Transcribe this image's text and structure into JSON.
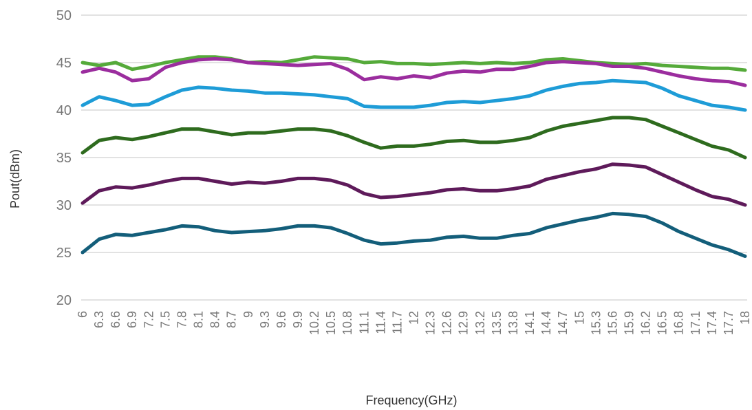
{
  "chart_data": {
    "type": "line",
    "title": "",
    "xlabel": "Frequency(GHz)",
    "ylabel": "Pout(dBm)",
    "ylim": [
      20,
      50
    ],
    "yticks": [
      "20",
      "25",
      "30",
      "35",
      "40",
      "45",
      "50"
    ],
    "xlim": [
      6,
      18
    ],
    "xtick_labels": [
      "6",
      "6.3",
      "6.6",
      "6.9",
      "7.2",
      "7.5",
      "7.8",
      "8.1",
      "8.4",
      "8.7",
      "9",
      "9.3",
      "9.6",
      "9.9",
      "10.2",
      "10.5",
      "10.8",
      "11.1",
      "11.4",
      "11.7",
      "12",
      "12.3",
      "12.6",
      "12.9",
      "13.2",
      "13.5",
      "13.8",
      "14.1",
      "14.4",
      "14.7",
      "15",
      "15.3",
      "15.6",
      "15.9",
      "16.2",
      "16.5",
      "16.8",
      "17.1",
      "17.4",
      "17.7",
      "18"
    ],
    "grid": true,
    "legend": "none",
    "series": [
      {
        "color": "#55aa3a",
        "points": [
          [
            6,
            45
          ],
          [
            6.3,
            44.7
          ],
          [
            6.6,
            45
          ],
          [
            6.9,
            44.3
          ],
          [
            7.2,
            44.6
          ],
          [
            7.5,
            45
          ],
          [
            7.8,
            45.3
          ],
          [
            8.1,
            45.6
          ],
          [
            8.4,
            45.6
          ],
          [
            8.7,
            45.4
          ],
          [
            9,
            45
          ],
          [
            9.3,
            45.1
          ],
          [
            9.6,
            45
          ],
          [
            9.9,
            45.3
          ],
          [
            10.2,
            45.6
          ],
          [
            10.5,
            45.5
          ],
          [
            10.8,
            45.4
          ],
          [
            11.1,
            45
          ],
          [
            11.4,
            45.1
          ],
          [
            11.7,
            44.9
          ],
          [
            12,
            44.9
          ],
          [
            12.3,
            44.8
          ],
          [
            12.6,
            44.9
          ],
          [
            12.9,
            45
          ],
          [
            13.2,
            44.9
          ],
          [
            13.5,
            45
          ],
          [
            13.8,
            44.9
          ],
          [
            14.1,
            45
          ],
          [
            14.4,
            45.3
          ],
          [
            14.7,
            45.4
          ],
          [
            15,
            45.2
          ],
          [
            15.3,
            45
          ],
          [
            15.6,
            44.9
          ],
          [
            15.9,
            44.8
          ],
          [
            16.2,
            44.9
          ],
          [
            16.5,
            44.7
          ],
          [
            16.8,
            44.6
          ],
          [
            17.1,
            44.5
          ],
          [
            17.4,
            44.4
          ],
          [
            17.7,
            44.4
          ],
          [
            18,
            44.2
          ]
        ]
      },
      {
        "color": "#9b2d9e",
        "points": [
          [
            6,
            44
          ],
          [
            6.3,
            44.4
          ],
          [
            6.6,
            44
          ],
          [
            6.9,
            43.1
          ],
          [
            7.2,
            43.3
          ],
          [
            7.5,
            44.5
          ],
          [
            7.8,
            45
          ],
          [
            8.1,
            45.3
          ],
          [
            8.4,
            45.4
          ],
          [
            8.7,
            45.3
          ],
          [
            9,
            45
          ],
          [
            9.3,
            44.9
          ],
          [
            9.6,
            44.8
          ],
          [
            9.9,
            44.7
          ],
          [
            10.2,
            44.8
          ],
          [
            10.5,
            44.9
          ],
          [
            10.8,
            44.3
          ],
          [
            11.1,
            43.2
          ],
          [
            11.4,
            43.5
          ],
          [
            11.7,
            43.3
          ],
          [
            12,
            43.6
          ],
          [
            12.3,
            43.4
          ],
          [
            12.6,
            43.9
          ],
          [
            12.9,
            44.1
          ],
          [
            13.2,
            44
          ],
          [
            13.5,
            44.3
          ],
          [
            13.8,
            44.3
          ],
          [
            14.1,
            44.6
          ],
          [
            14.4,
            45
          ],
          [
            14.7,
            45.1
          ],
          [
            15,
            45
          ],
          [
            15.3,
            44.9
          ],
          [
            15.6,
            44.6
          ],
          [
            15.9,
            44.6
          ],
          [
            16.2,
            44.4
          ],
          [
            16.5,
            44
          ],
          [
            16.8,
            43.6
          ],
          [
            17.1,
            43.3
          ],
          [
            17.4,
            43.1
          ],
          [
            17.7,
            43
          ],
          [
            18,
            42.6
          ]
        ]
      },
      {
        "color": "#1e9cd7",
        "points": [
          [
            6,
            40.5
          ],
          [
            6.3,
            41.4
          ],
          [
            6.6,
            41
          ],
          [
            6.9,
            40.5
          ],
          [
            7.2,
            40.6
          ],
          [
            7.5,
            41.4
          ],
          [
            7.8,
            42.1
          ],
          [
            8.1,
            42.4
          ],
          [
            8.4,
            42.3
          ],
          [
            8.7,
            42.1
          ],
          [
            9,
            42
          ],
          [
            9.3,
            41.8
          ],
          [
            9.6,
            41.8
          ],
          [
            9.9,
            41.7
          ],
          [
            10.2,
            41.6
          ],
          [
            10.5,
            41.4
          ],
          [
            10.8,
            41.2
          ],
          [
            11.1,
            40.4
          ],
          [
            11.4,
            40.3
          ],
          [
            11.7,
            40.3
          ],
          [
            12,
            40.3
          ],
          [
            12.3,
            40.5
          ],
          [
            12.6,
            40.8
          ],
          [
            12.9,
            40.9
          ],
          [
            13.2,
            40.8
          ],
          [
            13.5,
            41
          ],
          [
            13.8,
            41.2
          ],
          [
            14.1,
            41.5
          ],
          [
            14.4,
            42.1
          ],
          [
            14.7,
            42.5
          ],
          [
            15,
            42.8
          ],
          [
            15.3,
            42.9
          ],
          [
            15.6,
            43.1
          ],
          [
            15.9,
            43
          ],
          [
            16.2,
            42.9
          ],
          [
            16.5,
            42.3
          ],
          [
            16.8,
            41.5
          ],
          [
            17.1,
            41
          ],
          [
            17.4,
            40.5
          ],
          [
            17.7,
            40.3
          ],
          [
            18,
            40
          ]
        ]
      },
      {
        "color": "#2e6b1e",
        "points": [
          [
            6,
            35.5
          ],
          [
            6.3,
            36.8
          ],
          [
            6.6,
            37.1
          ],
          [
            6.9,
            36.9
          ],
          [
            7.2,
            37.2
          ],
          [
            7.5,
            37.6
          ],
          [
            7.8,
            38
          ],
          [
            8.1,
            38
          ],
          [
            8.4,
            37.7
          ],
          [
            8.7,
            37.4
          ],
          [
            9,
            37.6
          ],
          [
            9.3,
            37.6
          ],
          [
            9.6,
            37.8
          ],
          [
            9.9,
            38
          ],
          [
            10.2,
            38
          ],
          [
            10.5,
            37.8
          ],
          [
            10.8,
            37.3
          ],
          [
            11.1,
            36.6
          ],
          [
            11.4,
            36
          ],
          [
            11.7,
            36.2
          ],
          [
            12,
            36.2
          ],
          [
            12.3,
            36.4
          ],
          [
            12.6,
            36.7
          ],
          [
            12.9,
            36.8
          ],
          [
            13.2,
            36.6
          ],
          [
            13.5,
            36.6
          ],
          [
            13.8,
            36.8
          ],
          [
            14.1,
            37.1
          ],
          [
            14.4,
            37.8
          ],
          [
            14.7,
            38.3
          ],
          [
            15,
            38.6
          ],
          [
            15.3,
            38.9
          ],
          [
            15.6,
            39.2
          ],
          [
            15.9,
            39.2
          ],
          [
            16.2,
            39
          ],
          [
            16.5,
            38.3
          ],
          [
            16.8,
            37.6
          ],
          [
            17.1,
            36.9
          ],
          [
            17.4,
            36.2
          ],
          [
            17.7,
            35.8
          ],
          [
            18,
            35
          ]
        ]
      },
      {
        "color": "#5e1a5a",
        "points": [
          [
            6,
            30.2
          ],
          [
            6.3,
            31.5
          ],
          [
            6.6,
            31.9
          ],
          [
            6.9,
            31.8
          ],
          [
            7.2,
            32.1
          ],
          [
            7.5,
            32.5
          ],
          [
            7.8,
            32.8
          ],
          [
            8.1,
            32.8
          ],
          [
            8.4,
            32.5
          ],
          [
            8.7,
            32.2
          ],
          [
            9,
            32.4
          ],
          [
            9.3,
            32.3
          ],
          [
            9.6,
            32.5
          ],
          [
            9.9,
            32.8
          ],
          [
            10.2,
            32.8
          ],
          [
            10.5,
            32.6
          ],
          [
            10.8,
            32.1
          ],
          [
            11.1,
            31.2
          ],
          [
            11.4,
            30.8
          ],
          [
            11.7,
            30.9
          ],
          [
            12,
            31.1
          ],
          [
            12.3,
            31.3
          ],
          [
            12.6,
            31.6
          ],
          [
            12.9,
            31.7
          ],
          [
            13.2,
            31.5
          ],
          [
            13.5,
            31.5
          ],
          [
            13.8,
            31.7
          ],
          [
            14.1,
            32
          ],
          [
            14.4,
            32.7
          ],
          [
            14.7,
            33.1
          ],
          [
            15,
            33.5
          ],
          [
            15.3,
            33.8
          ],
          [
            15.6,
            34.3
          ],
          [
            15.9,
            34.2
          ],
          [
            16.2,
            34
          ],
          [
            16.5,
            33.2
          ],
          [
            16.8,
            32.4
          ],
          [
            17.1,
            31.6
          ],
          [
            17.4,
            30.9
          ],
          [
            17.7,
            30.6
          ],
          [
            18,
            30
          ]
        ]
      },
      {
        "color": "#135e7a",
        "points": [
          [
            6,
            25
          ],
          [
            6.3,
            26.4
          ],
          [
            6.6,
            26.9
          ],
          [
            6.9,
            26.8
          ],
          [
            7.2,
            27.1
          ],
          [
            7.5,
            27.4
          ],
          [
            7.8,
            27.8
          ],
          [
            8.1,
            27.7
          ],
          [
            8.4,
            27.3
          ],
          [
            8.7,
            27.1
          ],
          [
            9,
            27.2
          ],
          [
            9.3,
            27.3
          ],
          [
            9.6,
            27.5
          ],
          [
            9.9,
            27.8
          ],
          [
            10.2,
            27.8
          ],
          [
            10.5,
            27.6
          ],
          [
            10.8,
            27
          ],
          [
            11.1,
            26.3
          ],
          [
            11.4,
            25.9
          ],
          [
            11.7,
            26
          ],
          [
            12,
            26.2
          ],
          [
            12.3,
            26.3
          ],
          [
            12.6,
            26.6
          ],
          [
            12.9,
            26.7
          ],
          [
            13.2,
            26.5
          ],
          [
            13.5,
            26.5
          ],
          [
            13.8,
            26.8
          ],
          [
            14.1,
            27
          ],
          [
            14.4,
            27.6
          ],
          [
            14.7,
            28
          ],
          [
            15,
            28.4
          ],
          [
            15.3,
            28.7
          ],
          [
            15.6,
            29.1
          ],
          [
            15.9,
            29
          ],
          [
            16.2,
            28.8
          ],
          [
            16.5,
            28.1
          ],
          [
            16.8,
            27.2
          ],
          [
            17.1,
            26.5
          ],
          [
            17.4,
            25.8
          ],
          [
            17.7,
            25.3
          ],
          [
            18,
            24.6
          ]
        ]
      }
    ]
  }
}
